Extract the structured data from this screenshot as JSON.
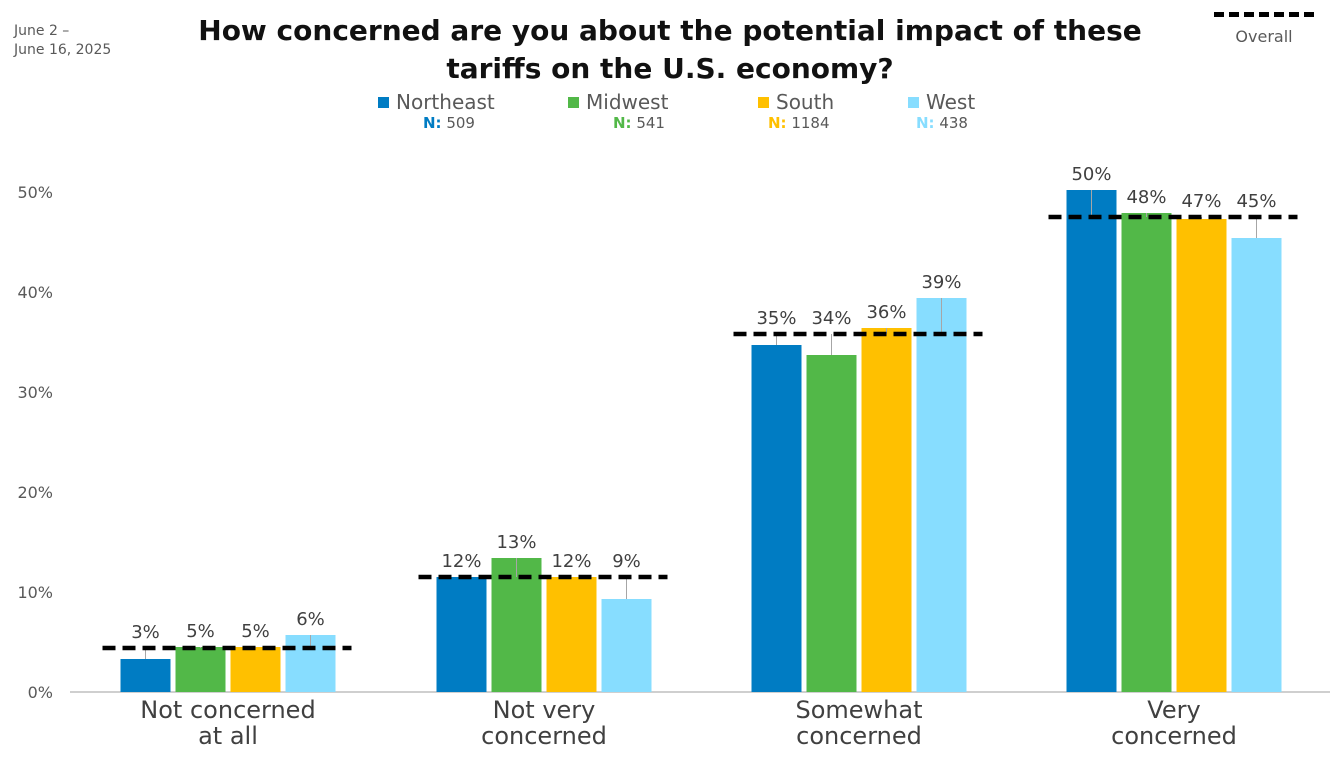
{
  "date": [
    "June 2 –",
    "June 16, 2025"
  ],
  "chart_data": {
    "type": "bar",
    "title": "How concerned are you about the potential impact of these tariffs on the U.S. economy?",
    "categories": [
      [
        "Not concerned",
        "at all"
      ],
      [
        "Not very",
        "concerned"
      ],
      [
        "Somewhat",
        "concerned"
      ],
      [
        "Very",
        "concerned"
      ]
    ],
    "series": [
      {
        "name": "Northeast",
        "n_label": "N:",
        "n": "509",
        "color": "#007CC3",
        "values": [
          3.3,
          11.5,
          34.7,
          50.2
        ],
        "labels": [
          "3%",
          "12%",
          "35%",
          "50%"
        ]
      },
      {
        "name": "Midwest",
        "n_label": "N:",
        "n": "541",
        "color": "#52B848",
        "values": [
          4.5,
          13.4,
          33.7,
          47.9
        ],
        "labels": [
          "5%",
          "13%",
          "34%",
          "48%"
        ]
      },
      {
        "name": "South",
        "n_label": "N:",
        "n": "1184",
        "color": "#FFC000",
        "values": [
          4.5,
          11.5,
          36.4,
          47.3
        ],
        "labels": [
          "5%",
          "12%",
          "36%",
          "47%"
        ]
      },
      {
        "name": "West",
        "n_label": "N:",
        "n": "438",
        "color": "#87DDFF",
        "values": [
          5.7,
          9.3,
          39.4,
          45.4
        ],
        "labels": [
          "6%",
          "9%",
          "39%",
          "45%"
        ]
      }
    ],
    "overall": {
      "name": "Overall",
      "values": [
        4.4,
        11.5,
        35.8,
        47.5
      ]
    },
    "yticks": [
      "0%",
      "10%",
      "20%",
      "30%",
      "40%",
      "50%"
    ],
    "ylim": [
      0,
      55
    ],
    "xlabel": "",
    "ylabel": "",
    "grid": false,
    "legend": "top-center"
  }
}
